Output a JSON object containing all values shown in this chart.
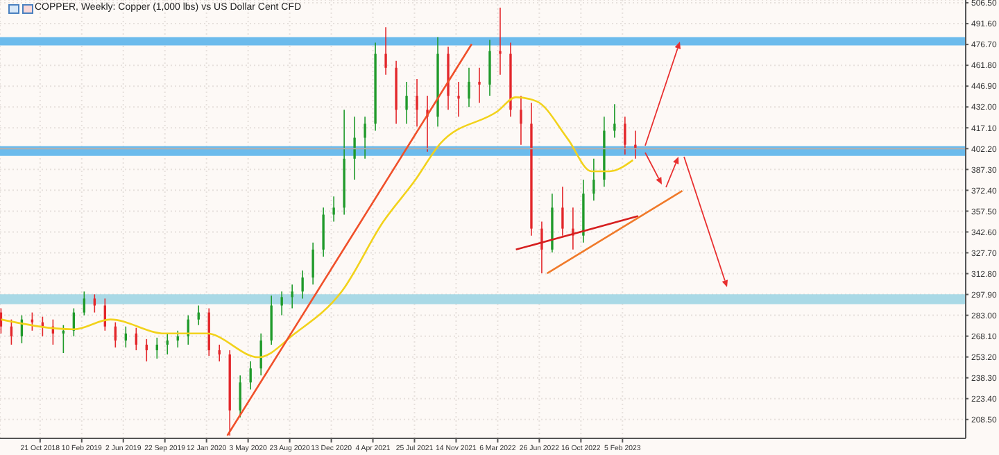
{
  "chart_data": {
    "type": "candlestick",
    "title": "COPPER, Weekly:  Copper (1,000 lbs) vs US Dollar Cent CFD",
    "x": [
      "2018-07-08",
      "2018-08-05",
      "2018-09-02",
      "2018-09-30",
      "2018-10-28",
      "2018-11-25",
      "2018-12-23",
      "2019-01-20",
      "2019-02-17",
      "2019-03-17",
      "2019-04-14",
      "2019-05-12",
      "2019-06-09",
      "2019-07-07",
      "2019-08-04",
      "2019-09-01",
      "2019-09-29",
      "2019-10-27",
      "2019-11-24",
      "2019-12-22",
      "2020-01-19",
      "2020-02-16",
      "2020-03-15",
      "2020-04-12",
      "2020-05-10",
      "2020-06-07",
      "2020-07-05",
      "2020-08-02",
      "2020-08-30",
      "2020-09-27",
      "2020-10-25",
      "2020-11-22",
      "2020-12-20",
      "2021-01-17",
      "2021-02-14",
      "2021-03-14",
      "2021-04-11",
      "2021-05-09",
      "2021-06-06",
      "2021-07-04",
      "2021-08-01",
      "2021-08-29",
      "2021-09-26",
      "2021-10-24",
      "2021-11-21",
      "2021-12-19",
      "2022-01-16",
      "2022-02-13",
      "2022-03-13",
      "2022-04-10",
      "2022-05-08",
      "2022-06-05",
      "2022-07-03",
      "2022-07-31",
      "2022-08-28",
      "2022-09-25",
      "2022-10-23",
      "2022-11-20",
      "2022-12-18",
      "2023-01-15",
      "2023-02-12",
      "2023-03-12"
    ],
    "ohlc": [
      [
        285,
        288,
        270,
        275
      ],
      [
        275,
        280,
        262,
        268
      ],
      [
        268,
        283,
        263,
        280
      ],
      [
        280,
        285,
        272,
        278
      ],
      [
        278,
        282,
        268,
        275
      ],
      [
        275,
        280,
        262,
        270
      ],
      [
        270,
        276,
        256,
        272
      ],
      [
        272,
        288,
        268,
        285
      ],
      [
        285,
        300,
        283,
        295
      ],
      [
        295,
        298,
        285,
        290
      ],
      [
        290,
        295,
        272,
        275
      ],
      [
        275,
        278,
        260,
        265
      ],
      [
        265,
        275,
        260,
        270
      ],
      [
        270,
        274,
        258,
        262
      ],
      [
        262,
        266,
        250,
        258
      ],
      [
        258,
        267,
        252,
        262
      ],
      [
        262,
        270,
        255,
        265
      ],
      [
        265,
        272,
        260,
        268
      ],
      [
        268,
        283,
        262,
        280
      ],
      [
        280,
        290,
        276,
        285
      ],
      [
        285,
        288,
        254,
        258
      ],
      [
        258,
        262,
        250,
        255
      ],
      [
        255,
        258,
        197,
        215
      ],
      [
        215,
        240,
        210,
        235
      ],
      [
        235,
        250,
        230,
        245
      ],
      [
        245,
        270,
        240,
        265
      ],
      [
        265,
        297,
        262,
        290
      ],
      [
        290,
        300,
        283,
        296
      ],
      [
        296,
        305,
        288,
        300
      ],
      [
        300,
        315,
        295,
        310
      ],
      [
        310,
        335,
        305,
        330
      ],
      [
        330,
        360,
        325,
        355
      ],
      [
        355,
        368,
        350,
        360
      ],
      [
        360,
        430,
        355,
        395
      ],
      [
        395,
        425,
        380,
        410
      ],
      [
        410,
        425,
        395,
        420
      ],
      [
        420,
        478,
        415,
        470
      ],
      [
        470,
        489,
        455,
        460
      ],
      [
        460,
        465,
        420,
        430
      ],
      [
        430,
        450,
        420,
        440
      ],
      [
        440,
        452,
        418,
        430
      ],
      [
        430,
        440,
        400,
        425
      ],
      [
        425,
        482,
        418,
        470
      ],
      [
        470,
        475,
        430,
        440
      ],
      [
        440,
        450,
        425,
        438
      ],
      [
        438,
        460,
        432,
        450
      ],
      [
        450,
        460,
        435,
        448
      ],
      [
        448,
        480,
        440,
        472
      ],
      [
        472,
        503,
        455,
        470
      ],
      [
        470,
        478,
        425,
        430
      ],
      [
        430,
        440,
        405,
        420
      ],
      [
        420,
        435,
        340,
        345
      ],
      [
        345,
        350,
        313,
        330
      ],
      [
        330,
        370,
        328,
        360
      ],
      [
        360,
        375,
        340,
        345
      ],
      [
        345,
        360,
        330,
        340
      ],
      [
        340,
        380,
        335,
        370
      ],
      [
        370,
        395,
        365,
        380
      ],
      [
        380,
        425,
        375,
        415
      ],
      [
        415,
        434,
        410,
        420
      ],
      [
        420,
        425,
        398,
        405
      ],
      [
        405,
        415,
        395,
        402
      ]
    ],
    "series": [
      {
        "type": "line",
        "color": "#f2d21b",
        "x": [
          "2018-07-08",
          "2019-01-20",
          "2019-04-28",
          "2019-09-22",
          "2020-01-12",
          "2020-05-31",
          "2020-09-06",
          "2021-01-10",
          "2021-05-02",
          "2021-07-25",
          "2021-10-03",
          "2022-03-06",
          "2022-04-24",
          "2022-06-19",
          "2022-09-11",
          "2022-11-13",
          "2023-01-01",
          "2023-03-05"
        ],
        "values": [
          280,
          273,
          280,
          270,
          270,
          253,
          270,
          300,
          350,
          379,
          406,
          429,
          439,
          436,
          409,
          386,
          386,
          394
        ]
      },
      {
        "type": "line",
        "color": "#f0502a",
        "x": [
          "2020-03-08",
          "2021-12-26"
        ],
        "values": [
          197,
          477
        ]
      },
      {
        "type": "line",
        "color": "#d61f1f",
        "x": [
          "2022-04-24",
          "2023-03-19"
        ],
        "values": [
          330,
          354
        ]
      },
      {
        "type": "line",
        "color": "#f07a2a",
        "x": [
          "2022-07-17",
          "2023-07-16"
        ],
        "values": [
          313,
          372
        ]
      }
    ],
    "xlim": [
      "2018-07-05",
      "2025-08-17"
    ],
    "xticks": [
      {
        "value": "2018-10-21",
        "label": "21 Oct 2018"
      },
      {
        "value": "2019-02-10",
        "label": "10 Feb 2019"
      },
      {
        "value": "2019-06-02",
        "label": "2 Jun 2019"
      },
      {
        "value": "2019-09-22",
        "label": "22 Sep 2019"
      },
      {
        "value": "2020-01-12",
        "label": "12 Jan 2020"
      },
      {
        "value": "2020-05-03",
        "label": "3 May 2020"
      },
      {
        "value": "2020-08-23",
        "label": "23 Aug 2020"
      },
      {
        "value": "2020-12-13",
        "label": "13 Dec 2020"
      },
      {
        "value": "2021-04-04",
        "label": "4 Apr 2021"
      },
      {
        "value": "2021-07-25",
        "label": "25 Jul 2021"
      },
      {
        "value": "2021-11-14",
        "label": "14 Nov 2021"
      },
      {
        "value": "2022-03-06",
        "label": "6 Mar 2022"
      },
      {
        "value": "2022-06-26",
        "label": "26 Jun 2022"
      },
      {
        "value": "2022-10-16",
        "label": "16 Oct 2022"
      },
      {
        "value": "2023-02-05",
        "label": "5 Feb 2023"
      }
    ],
    "ylim": [
      195,
      508.5
    ],
    "yticks": [
      {
        "value": 208.5,
        "label": "208.50"
      },
      {
        "value": 223.4,
        "label": "223.40"
      },
      {
        "value": 238.3,
        "label": "238.30"
      },
      {
        "value": 253.2,
        "label": "253.20"
      },
      {
        "value": 268.1,
        "label": "268.10"
      },
      {
        "value": 283,
        "label": "283.00"
      },
      {
        "value": 297.9,
        "label": "297.90"
      },
      {
        "value": 312.8,
        "label": "312.80"
      },
      {
        "value": 327.7,
        "label": "327.70"
      },
      {
        "value": 342.6,
        "label": "342.60"
      },
      {
        "value": 357.5,
        "label": "357.50"
      },
      {
        "value": 372.4,
        "label": "372.40"
      },
      {
        "value": 387.3,
        "label": "387.30"
      },
      {
        "value": 402.2,
        "label": "402.20"
      },
      {
        "value": 417.1,
        "label": "417.10"
      },
      {
        "value": 432,
        "label": "432.00"
      },
      {
        "value": 446.9,
        "label": "446.90"
      },
      {
        "value": 461.8,
        "label": "461.80"
      },
      {
        "value": 476.7,
        "label": "476.70"
      },
      {
        "value": 491.6,
        "label": "491.60"
      },
      {
        "value": 506.5,
        "label": "506.50"
      }
    ],
    "ref_lines": [
      {
        "axis": "y",
        "value": 402.2,
        "color": "#b0b0b0"
      }
    ],
    "bands": [
      {
        "axis": "y",
        "from": 476,
        "to": 482,
        "color": "#6cbbec"
      },
      {
        "axis": "y",
        "from": 397,
        "to": 404,
        "color": "#6cbbec"
      },
      {
        "axis": "y",
        "from": 291,
        "to": 298,
        "color": "#a9d9e6"
      }
    ],
    "grid": true
  }
}
